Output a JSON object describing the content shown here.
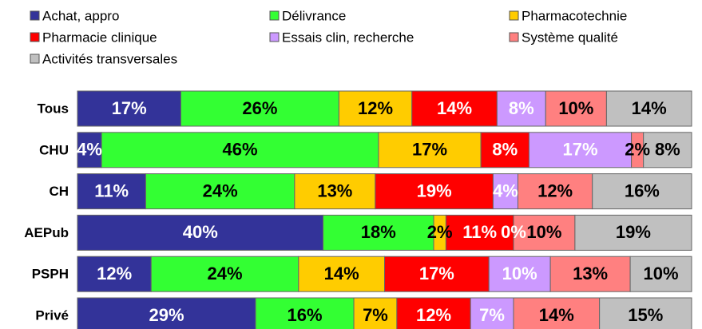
{
  "chart_data": {
    "type": "stacked-bar-100",
    "orientation": "horizontal",
    "categories": [
      "Tous",
      "CHU",
      "CH",
      "AEPub",
      "PSPH",
      "Privé"
    ],
    "series": [
      {
        "name": "Achat, appro",
        "color": "#333399",
        "label_color": "#ffffff",
        "values": [
          17,
          4,
          11,
          40,
          12,
          29
        ],
        "value_labels": [
          "17%",
          "4%",
          "11%",
          "40%",
          "12%",
          "29%"
        ]
      },
      {
        "name": "Délivrance",
        "color": "#33ff33",
        "label_color": "#000000",
        "values": [
          26,
          46,
          24,
          18,
          24,
          16
        ],
        "value_labels": [
          "26%",
          "46%",
          "24%",
          "18%",
          "24%",
          "16%"
        ]
      },
      {
        "name": "Pharmacotechnie",
        "color": "#ffcc00",
        "label_color": "#000000",
        "values": [
          12,
          17,
          13,
          2,
          14,
          7
        ],
        "value_labels": [
          "12%",
          "17%",
          "13%",
          "2%",
          "14%",
          "7%"
        ]
      },
      {
        "name": "Pharmacie clinique",
        "color": "#ff0000",
        "label_color": "#ffffff",
        "values": [
          14,
          8,
          19,
          11,
          17,
          12
        ],
        "value_labels": [
          "14%",
          "8%",
          "19%",
          "11%",
          "17%",
          "12%"
        ]
      },
      {
        "name": "Essais clin, recherche",
        "color": "#cc99ff",
        "label_color": "#ffffff",
        "values": [
          8,
          17,
          4,
          0,
          10,
          7
        ],
        "value_labels": [
          "8%",
          "17%",
          "4%",
          "0%",
          "10%",
          "7%"
        ]
      },
      {
        "name": "Système qualité",
        "color": "#ff8080",
        "label_color": "#000000",
        "values": [
          10,
          2,
          12,
          10,
          13,
          14
        ],
        "value_labels": [
          "10%",
          "2%",
          "12%",
          "10%",
          "13%",
          "14%"
        ]
      },
      {
        "name": "Activités transversales",
        "color": "#c0c0c0",
        "label_color": "#000000",
        "values": [
          14,
          8,
          16,
          19,
          10,
          15
        ],
        "value_labels": [
          "14%",
          "8%",
          "16%",
          "19%",
          "10%",
          "15%"
        ]
      }
    ],
    "legend": "top"
  }
}
